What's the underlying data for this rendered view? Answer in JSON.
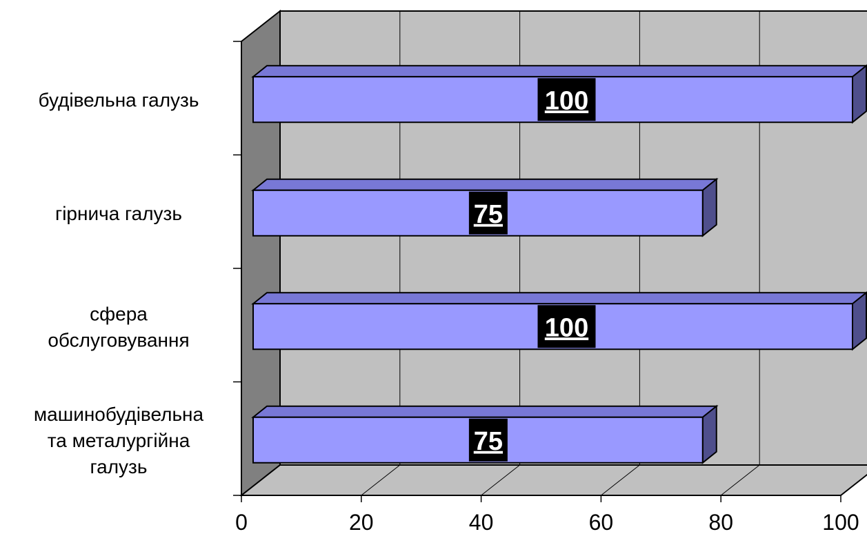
{
  "chart_data": {
    "type": "bar",
    "orientation": "horizontal",
    "style": "3d",
    "categories": [
      "будівельна галузь",
      "гірнича галузь",
      "сфера обслуговування",
      "машинобудівельна та металургійна галузь"
    ],
    "category_lines": [
      [
        "будівельна галузь"
      ],
      [
        "гірнича галузь"
      ],
      [
        "сфера",
        "обслуговування"
      ],
      [
        "машинобудівельна",
        "та металургійна",
        "галузь"
      ]
    ],
    "values": [
      100,
      75,
      100,
      75
    ],
    "data_labels": [
      "100",
      "75",
      "100",
      "75"
    ],
    "x_ticks": [
      "0",
      "20",
      "40",
      "60",
      "80",
      "100"
    ],
    "xlim": [
      0,
      100
    ],
    "grid": true,
    "legend": "none",
    "title": "",
    "xlabel": "",
    "ylabel": ""
  },
  "colors": {
    "bar_front": "#9999ff",
    "bar_top": "#7878d6",
    "bar_side": "#4f4f8c",
    "wall": "#c0c0c0",
    "side_wall": "#808080",
    "floor": "#c0c0c0",
    "label_bg": "#000000",
    "label_text": "#ffffff"
  }
}
